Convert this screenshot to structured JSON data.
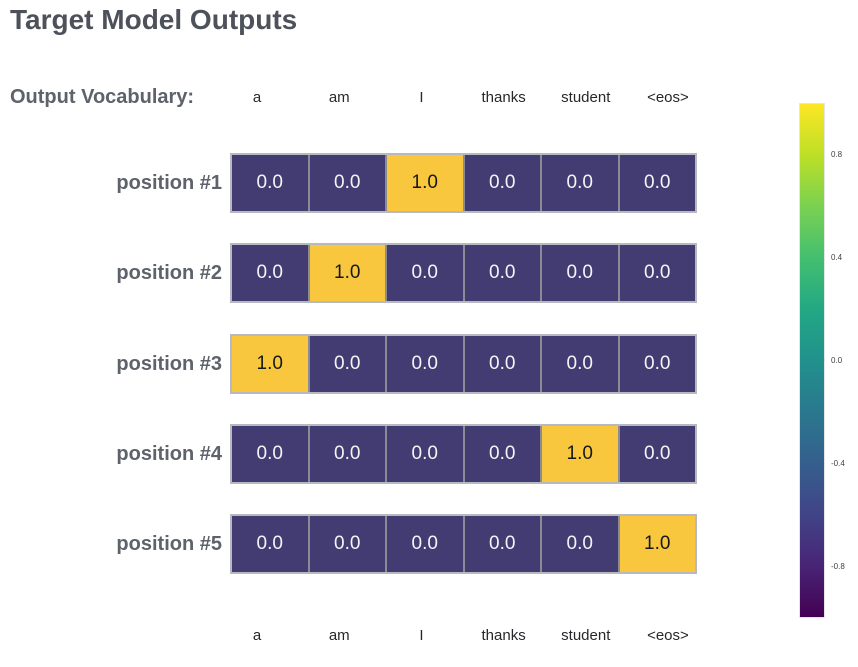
{
  "title": "Target Model Outputs",
  "vocab_caption": "Output Vocabulary:",
  "colors": {
    "cell_low": "#423c72",
    "cell_high": "#f8c73e",
    "text_on_low": "#f4f4f6",
    "text_on_high": "#17181a",
    "row_outer_border": "#b6bac0",
    "cell_divider": "#8b8b95",
    "title_text": "#4d525a",
    "label_text": "#5d626b",
    "vocab_text": "#26282b",
    "tick_text": "#3f3f3f",
    "viridis_stops": [
      "#fde725",
      "#bddf26",
      "#7ad151",
      "#44bf70",
      "#22a884",
      "#21918c",
      "#2a788e",
      "#355f8d",
      "#414487",
      "#482475",
      "#440154"
    ]
  },
  "chart_data": {
    "type": "heatmap",
    "title": "Target Model Outputs",
    "x_labels": [
      "a",
      "am",
      "I",
      "thanks",
      "student",
      "<eos>"
    ],
    "y_labels": [
      "position #1",
      "position #2",
      "position #3",
      "position #4",
      "position #5"
    ],
    "values": [
      [
        0,
        0,
        1,
        0,
        0,
        0
      ],
      [
        0,
        1,
        0,
        0,
        0,
        0
      ],
      [
        1,
        0,
        0,
        0,
        0,
        0
      ],
      [
        0,
        0,
        0,
        0,
        1,
        0
      ],
      [
        0,
        0,
        0,
        0,
        0,
        1
      ]
    ],
    "value_display": [
      [
        "0.0",
        "0.0",
        "1.0",
        "0.0",
        "0.0",
        "0.0"
      ],
      [
        "0.0",
        "1.0",
        "0.0",
        "0.0",
        "0.0",
        "0.0"
      ],
      [
        "1.0",
        "0.0",
        "0.0",
        "0.0",
        "0.0",
        "0.0"
      ],
      [
        "0.0",
        "0.0",
        "0.0",
        "0.0",
        "1.0",
        "0.0"
      ],
      [
        "0.0",
        "0.0",
        "0.0",
        "0.0",
        "0.0",
        "1.0"
      ]
    ],
    "xlabel": "",
    "ylabel": "",
    "legend": "none",
    "colorbar": {
      "position": "right",
      "min": -1,
      "max": 1,
      "ticks": [
        0.8,
        0.4,
        0.0,
        -0.4,
        -0.8
      ],
      "tick_labels": [
        "0.8",
        "0.4",
        "0.0",
        "-0.4",
        "-0.8"
      ]
    }
  }
}
